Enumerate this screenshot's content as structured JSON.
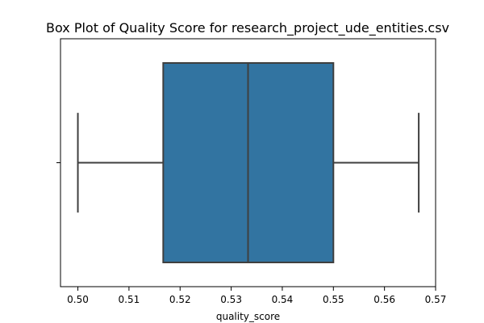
{
  "chart_data": {
    "type": "box",
    "title": "Box Plot of Quality Score for research_project_ude_entities.csv",
    "xlabel": "quality_score",
    "ylabel": "",
    "orientation": "horizontal",
    "xlim": [
      0.4966,
      0.57
    ],
    "x_ticks": [
      0.5,
      0.51,
      0.52,
      0.53,
      0.54,
      0.55,
      0.56,
      0.57
    ],
    "x_tick_labels": [
      "0.50",
      "0.51",
      "0.52",
      "0.53",
      "0.54",
      "0.55",
      "0.56",
      "0.57"
    ],
    "grid": false,
    "legend": "none",
    "box": {
      "min": 0.5,
      "q1": 0.5167,
      "median": 0.5333,
      "q3": 0.55,
      "max": 0.5667
    },
    "colors": {
      "box_fill": "#3274a1",
      "line": "#3f3f3f",
      "axis": "#000000"
    }
  }
}
